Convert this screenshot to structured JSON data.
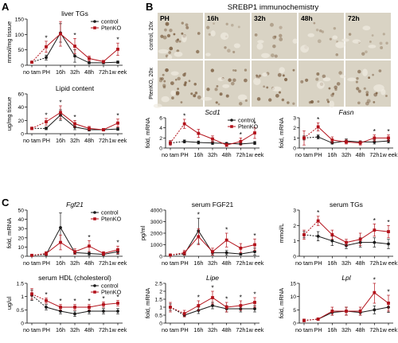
{
  "figure": {
    "panels": [
      {
        "letter": "A"
      },
      {
        "letter": "B"
      },
      {
        "letter": "C"
      }
    ],
    "colors": {
      "control": "#1a1a1a",
      "ptenko": "#b3121b",
      "tissue_bg": "#d9d3c4",
      "nuclei": "#6b4a2b"
    },
    "legend_labels": [
      "control",
      "PtenKO"
    ],
    "x_tick_labels": [
      "no tam",
      "PH",
      "16h",
      "32h",
      "48h",
      "72h",
      "1w eek"
    ],
    "immuno": {
      "title": "SREBP1 immunochemistry",
      "row_labels": [
        "control, 20x",
        "PtenKO, 20x"
      ],
      "col_labels": [
        "PH",
        "16h",
        "32h",
        "48h",
        "72h"
      ]
    }
  },
  "chart_data": [
    {
      "type": "line",
      "id": "A1",
      "title": "liver TGs",
      "title_style": "normal",
      "ylabel": "mmol/mg tissue",
      "ylim": [
        0,
        150
      ],
      "yticks": [
        0,
        50,
        100,
        150
      ],
      "legend": "top-right",
      "x": [
        "no tam",
        "PH",
        "16h",
        "32h",
        "48h",
        "72h",
        "1w eek"
      ],
      "series": [
        {
          "name": "control",
          "values": [
            10,
            25,
            105,
            30,
            8,
            8,
            10
          ],
          "err": [
            2,
            8,
            30,
            20,
            3,
            3,
            4
          ]
        },
        {
          "name": "PtenKO",
          "values": [
            10,
            60,
            102,
            62,
            22,
            12,
            52
          ],
          "err": [
            3,
            18,
            40,
            25,
            8,
            4,
            20
          ]
        }
      ],
      "stars": [
        "",
        "*",
        "",
        "*",
        "",
        "",
        "*"
      ]
    },
    {
      "type": "line",
      "id": "A2",
      "title": "Lipid content",
      "title_style": "normal",
      "ylabel": "ug/mg tissue",
      "ylim": [
        0,
        60
      ],
      "yticks": [
        0,
        20,
        40,
        60
      ],
      "legend": "none",
      "x": [
        "no tam",
        "PH",
        "16h",
        "32h",
        "48h",
        "72h",
        "1w eek"
      ],
      "series": [
        {
          "name": "control",
          "values": [
            8,
            8,
            28,
            10,
            6,
            6,
            7
          ],
          "err": [
            1,
            2,
            8,
            4,
            2,
            2,
            2
          ]
        },
        {
          "name": "PtenKO",
          "values": [
            8,
            18,
            32,
            15,
            8,
            6,
            16
          ],
          "err": [
            2,
            5,
            10,
            5,
            3,
            2,
            6
          ]
        }
      ],
      "stars": [
        "",
        "*",
        "*",
        "*",
        "",
        "",
        "*"
      ]
    },
    {
      "type": "line",
      "id": "B1",
      "title": "Scd1",
      "title_style": "italic",
      "ylabel": "fold, mRNA",
      "ylim": [
        0,
        6
      ],
      "yticks": [
        0,
        2,
        4,
        6
      ],
      "legend": "top-right",
      "x": [
        "no tam",
        "PH",
        "16h",
        "32h",
        "48h",
        "72h",
        "1w eek"
      ],
      "series": [
        {
          "name": "control",
          "values": [
            1,
            1.3,
            1.1,
            1.0,
            0.9,
            0.8,
            1.0
          ],
          "err": [
            0.3,
            0.3,
            0.3,
            0.3,
            0.2,
            0.2,
            0.3
          ]
        },
        {
          "name": "PtenKO",
          "values": [
            1,
            4.8,
            2.9,
            1.8,
            0.6,
            1.3,
            3.0
          ],
          "err": [
            0.5,
            0.9,
            0.8,
            0.6,
            0.3,
            0.7,
            1.1
          ]
        }
      ],
      "stars": [
        "",
        "*",
        "",
        "",
        "",
        "*",
        "*"
      ]
    },
    {
      "type": "line",
      "id": "B2",
      "title": "Fasn",
      "title_style": "italic",
      "ylabel": "fold, mRNA",
      "ylim": [
        0,
        3
      ],
      "yticks": [
        0,
        1,
        2,
        3
      ],
      "legend": "none",
      "x": [
        "no tam",
        "PH",
        "16h",
        "32h",
        "48h",
        "72h",
        "1w eek"
      ],
      "series": [
        {
          "name": "control",
          "values": [
            1,
            1.1,
            0.5,
            0.7,
            0.6,
            0.6,
            0.7
          ],
          "err": [
            0.2,
            0.2,
            0.1,
            0.2,
            0.1,
            0.2,
            0.2
          ]
        },
        {
          "name": "PtenKO",
          "values": [
            1,
            2.1,
            0.8,
            0.6,
            0.5,
            1.0,
            1.0
          ],
          "err": [
            0.7,
            0.4,
            0.3,
            0.2,
            0.2,
            0.3,
            0.3
          ]
        }
      ],
      "stars": [
        "",
        "*",
        "",
        "",
        "",
        "*",
        "*"
      ]
    },
    {
      "type": "line",
      "id": "C1",
      "title": "Fgf21",
      "title_style": "italic",
      "ylabel": "fold, mRNA",
      "ylim": [
        0,
        50
      ],
      "yticks": [
        0,
        10,
        20,
        30,
        40,
        50
      ],
      "legend": "right",
      "x": [
        "no tam",
        "PH",
        "16h",
        "32h",
        "48h",
        "72h",
        "1w eek"
      ],
      "series": [
        {
          "name": "control",
          "values": [
            1,
            2,
            31,
            4,
            3,
            2,
            5
          ],
          "err": [
            0.5,
            1,
            16,
            2,
            2,
            1,
            3
          ]
        },
        {
          "name": "PtenKO",
          "values": [
            1,
            3,
            15,
            5,
            11,
            3,
            7
          ],
          "err": [
            0.5,
            2,
            8,
            3,
            6,
            2,
            4
          ]
        }
      ],
      "stars": [
        "",
        "",
        "",
        "",
        "*",
        "",
        "*"
      ]
    },
    {
      "type": "line",
      "id": "C2",
      "title": "serum FGF21",
      "title_style": "normal",
      "ylabel": "pg/ml",
      "ylim": [
        0,
        4000
      ],
      "yticks": [
        0,
        1000,
        2000,
        3000,
        4000
      ],
      "legend": "none",
      "x": [
        "no tam",
        "PH",
        "16h",
        "32h",
        "48h",
        "72h",
        "1w eek"
      ],
      "series": [
        {
          "name": "control",
          "values": [
            100,
            200,
            2200,
            300,
            300,
            200,
            400
          ],
          "err": [
            50,
            100,
            1100,
            200,
            200,
            100,
            300
          ]
        },
        {
          "name": "PtenKO",
          "values": [
            100,
            300,
            1700,
            400,
            1400,
            700,
            1000
          ],
          "err": [
            50,
            200,
            700,
            300,
            600,
            400,
            500
          ]
        }
      ],
      "stars": [
        "",
        "",
        "*",
        "",
        "*",
        "",
        "*"
      ]
    },
    {
      "type": "line",
      "id": "C3",
      "title": "serum TGs",
      "title_style": "normal",
      "ylabel": "mmol/L",
      "ylim": [
        0,
        3
      ],
      "yticks": [
        0,
        1,
        2,
        3
      ],
      "legend": "none",
      "x": [
        "no tam",
        "PH",
        "16h",
        "32h",
        "48h",
        "72h",
        "1w eek"
      ],
      "series": [
        {
          "name": "control",
          "values": [
            1.4,
            1.3,
            1.0,
            0.7,
            0.9,
            0.9,
            0.8
          ],
          "err": [
            0.2,
            0.3,
            0.3,
            0.2,
            0.3,
            0.3,
            0.3
          ]
        },
        {
          "name": "PtenKO",
          "values": [
            1.4,
            2.3,
            1.4,
            0.9,
            1.1,
            1.7,
            1.6
          ],
          "err": [
            0.3,
            0.3,
            0.3,
            0.2,
            0.4,
            0.4,
            0.4
          ]
        }
      ],
      "stars": [
        "",
        "*",
        "",
        "",
        "",
        "*",
        "*"
      ]
    },
    {
      "type": "line",
      "id": "C4",
      "title": "serum HDL (cholesterol)",
      "title_style": "normal",
      "ylabel": "ug/ul",
      "ylim": [
        0,
        1.5
      ],
      "yticks": [
        0,
        0.5,
        1.0,
        1.5
      ],
      "legend": "top-right",
      "x": [
        "no tam",
        "PH",
        "16h",
        "32h",
        "48h",
        "72h",
        "1w eek"
      ],
      "series": [
        {
          "name": "control",
          "values": [
            1.05,
            0.6,
            0.45,
            0.35,
            0.45,
            0.45,
            0.45
          ],
          "err": [
            0.2,
            0.1,
            0.1,
            0.1,
            0.1,
            0.1,
            0.1
          ]
        },
        {
          "name": "PtenKO",
          "values": [
            1.1,
            0.85,
            0.6,
            0.6,
            0.6,
            0.7,
            0.75
          ],
          "err": [
            0.2,
            0.1,
            0.1,
            0.1,
            0.1,
            0.1,
            0.1
          ]
        }
      ],
      "stars": [
        "",
        "*",
        "*",
        "*",
        "*",
        "*",
        "*"
      ]
    },
    {
      "type": "line",
      "id": "C5",
      "title": "Lipe",
      "title_style": "italic",
      "ylabel": "fold, mRNA",
      "ylim": [
        0,
        2.5
      ],
      "yticks": [
        0,
        0.5,
        1.0,
        1.5,
        2.0,
        2.5
      ],
      "legend": "none",
      "x": [
        "no tam",
        "PH",
        "16h",
        "32h",
        "48h",
        "72h",
        "1w eek"
      ],
      "series": [
        {
          "name": "control",
          "values": [
            1,
            0.5,
            0.8,
            1.1,
            0.9,
            0.9,
            0.9
          ],
          "err": [
            0.2,
            0.1,
            0.2,
            0.2,
            0.2,
            0.2,
            0.2
          ]
        },
        {
          "name": "PtenKO",
          "values": [
            1,
            0.6,
            1.1,
            1.6,
            1.0,
            1.1,
            1.3
          ],
          "err": [
            0.3,
            0.2,
            0.3,
            0.4,
            0.3,
            0.3,
            0.3
          ]
        }
      ],
      "stars": [
        "",
        "",
        "*",
        "*",
        "*",
        "*",
        "*"
      ]
    },
    {
      "type": "line",
      "id": "C6",
      "title": "Lpl",
      "title_style": "italic",
      "ylabel": "fold, mRNA",
      "ylim": [
        0,
        15
      ],
      "yticks": [
        0,
        5,
        10,
        15
      ],
      "legend": "none",
      "x": [
        "no tam",
        "PH",
        "16h",
        "32h",
        "48h",
        "72h",
        "1w eek"
      ],
      "series": [
        {
          "name": "control",
          "values": [
            1,
            1.5,
            4,
            4.5,
            4,
            5,
            6
          ],
          "err": [
            0.5,
            0.5,
            1,
            1.5,
            1,
            1.5,
            2
          ]
        },
        {
          "name": "PtenKO",
          "values": [
            1,
            1.5,
            4.5,
            4.5,
            4.5,
            11.5,
            7.5
          ],
          "err": [
            0.5,
            0.5,
            1.5,
            1.5,
            1.5,
            4,
            3
          ]
        }
      ],
      "stars": [
        "",
        "",
        "",
        "",
        "",
        "*",
        "*"
      ]
    }
  ]
}
